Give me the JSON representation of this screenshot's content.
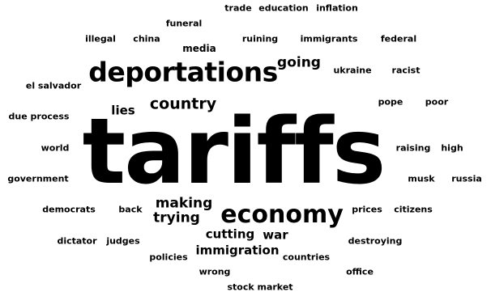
{
  "word_cloud": {
    "words": [
      {
        "text": "tariffs"
      },
      {
        "text": "deportations"
      },
      {
        "text": "economy"
      },
      {
        "text": "country"
      },
      {
        "text": "going"
      },
      {
        "text": "making"
      },
      {
        "text": "trying"
      },
      {
        "text": "immigration"
      },
      {
        "text": "lies"
      },
      {
        "text": "war"
      },
      {
        "text": "cutting"
      },
      {
        "text": "media"
      },
      {
        "text": "trade"
      },
      {
        "text": "education"
      },
      {
        "text": "inflation"
      },
      {
        "text": "funeral"
      },
      {
        "text": "illegal"
      },
      {
        "text": "china"
      },
      {
        "text": "ruining"
      },
      {
        "text": "immigrants"
      },
      {
        "text": "federal"
      },
      {
        "text": "ukraine"
      },
      {
        "text": "racist"
      },
      {
        "text": "el salvador"
      },
      {
        "text": "pope"
      },
      {
        "text": "poor"
      },
      {
        "text": "due process"
      },
      {
        "text": "world"
      },
      {
        "text": "raising"
      },
      {
        "text": "high"
      },
      {
        "text": "government"
      },
      {
        "text": "musk"
      },
      {
        "text": "russia"
      },
      {
        "text": "democrats"
      },
      {
        "text": "back"
      },
      {
        "text": "prices"
      },
      {
        "text": "citizens"
      },
      {
        "text": "dictator"
      },
      {
        "text": "judges"
      },
      {
        "text": "destroying"
      },
      {
        "text": "policies"
      },
      {
        "text": "countries"
      },
      {
        "text": "wrong"
      },
      {
        "text": "office"
      },
      {
        "text": "stock market"
      }
    ]
  }
}
